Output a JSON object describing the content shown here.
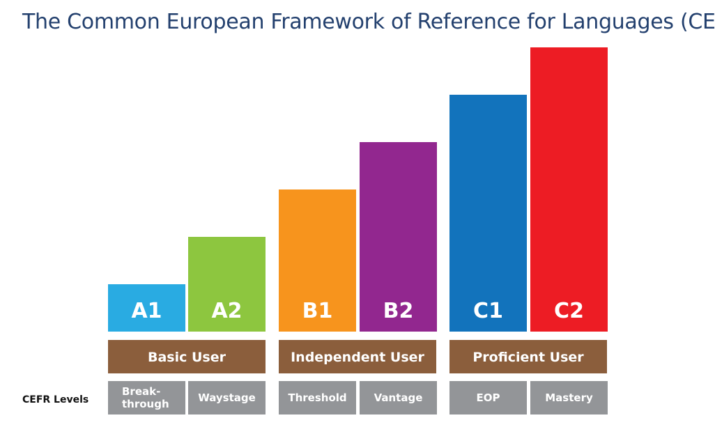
{
  "title": "The Common European Framework of Reference for Languages (CEFR)",
  "row_label": "CEFR Levels",
  "levels": [
    {
      "code": "A1",
      "color": "#29abe2",
      "rank": 1
    },
    {
      "code": "A2",
      "color": "#8dc63f",
      "rank": 2
    },
    {
      "code": "B1",
      "color": "#f7941d",
      "rank": 3
    },
    {
      "code": "B2",
      "color": "#92278f",
      "rank": 4
    },
    {
      "code": "C1",
      "color": "#1273bc",
      "rank": 5
    },
    {
      "code": "C2",
      "color": "#ed1c24",
      "rank": 6
    }
  ],
  "groups": [
    {
      "label": "Basic User",
      "color": "#8b5e3c"
    },
    {
      "label": "Independent User",
      "color": "#8b5e3c"
    },
    {
      "label": "Proficient User",
      "color": "#8b5e3c"
    }
  ],
  "sublevels": [
    {
      "lines": [
        "Break-",
        "through"
      ],
      "color": "#939598"
    },
    {
      "lines": [
        "Waystage"
      ],
      "color": "#939598"
    },
    {
      "lines": [
        "Threshold"
      ],
      "color": "#939598"
    },
    {
      "lines": [
        "Vantage"
      ],
      "color": "#939598"
    },
    {
      "lines": [
        "EOP"
      ],
      "color": "#939598"
    },
    {
      "lines": [
        "Mastery"
      ],
      "color": "#939598"
    }
  ]
}
